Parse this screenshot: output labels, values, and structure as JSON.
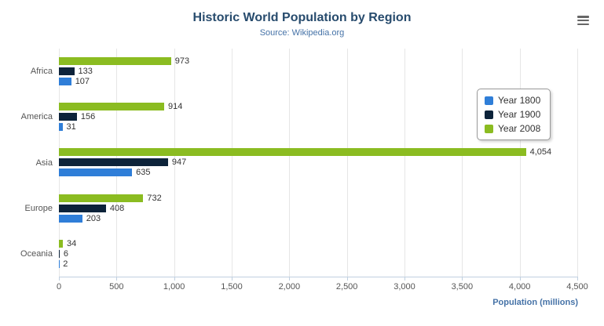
{
  "chart_data": {
    "type": "bar",
    "title": "Historic World Population by Region",
    "subtitle": "Source: Wikipedia.org",
    "categories": [
      "Africa",
      "America",
      "Asia",
      "Europe",
      "Oceania"
    ],
    "series": [
      {
        "name": "Year 1800",
        "color": "#2f7ed8",
        "values": [
          107,
          31,
          635,
          203,
          2
        ]
      },
      {
        "name": "Year 1900",
        "color": "#0d233a",
        "values": [
          133,
          156,
          947,
          408,
          6
        ]
      },
      {
        "name": "Year 2008",
        "color": "#8bbc21",
        "values": [
          973,
          914,
          4054,
          732,
          34
        ]
      }
    ],
    "bar_order_top_to_bottom": [
      "Year 2008",
      "Year 1900",
      "Year 1800"
    ],
    "xlabel": "Population (millions)",
    "xlim": [
      0,
      4500
    ],
    "xticks": [
      0,
      500,
      1000,
      1500,
      2000,
      2500,
      3000,
      3500,
      4000,
      4500
    ],
    "grid": "vertical",
    "legend_position": "right-floating"
  },
  "export_menu": {
    "icon": "hamburger-menu-icon"
  }
}
